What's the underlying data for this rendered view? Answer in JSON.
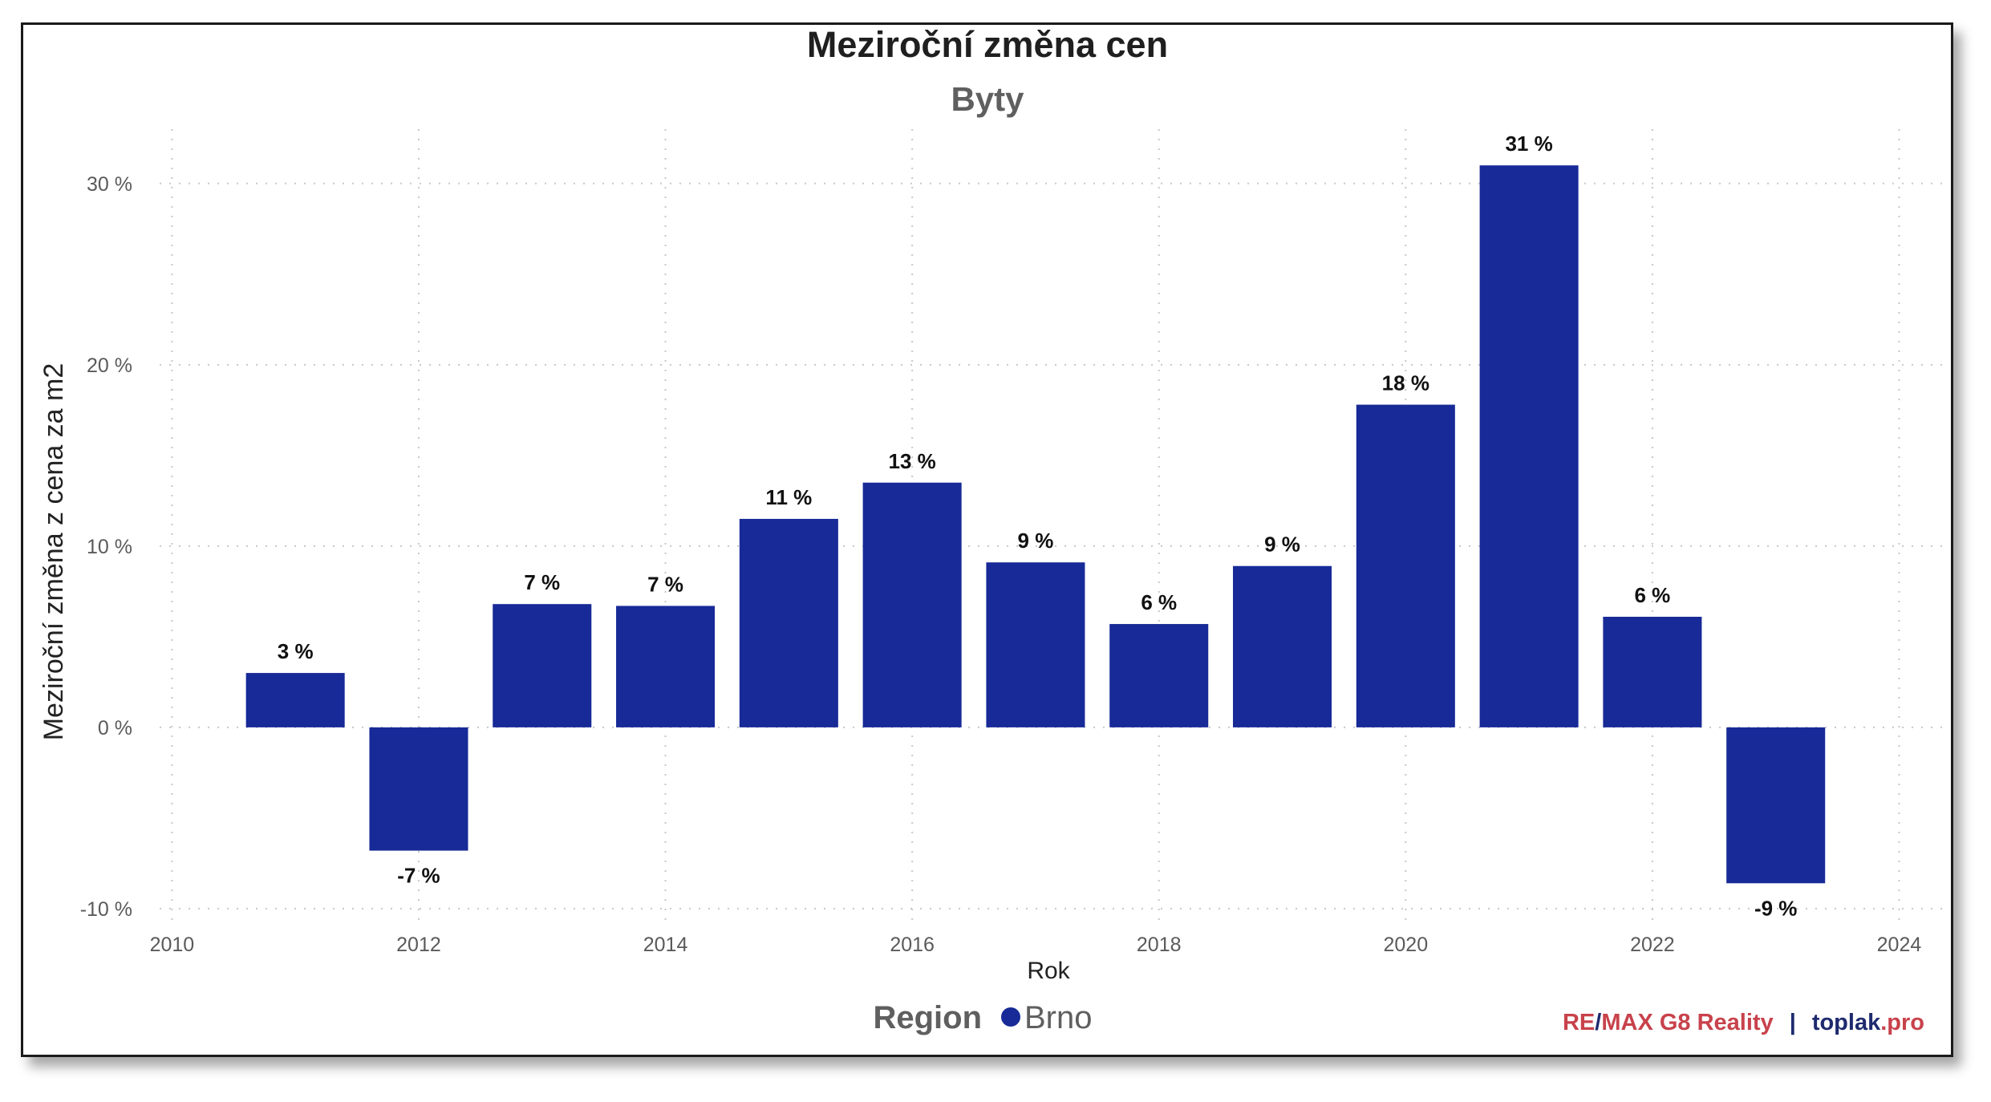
{
  "chart_data": {
    "type": "bar",
    "title": "Meziroční změna cen",
    "subtitle": "Byty",
    "xlabel": "Rok",
    "ylabel": "Meziroční změna z cena za m2",
    "x": [
      2011,
      2012,
      2013,
      2014,
      2015,
      2016,
      2017,
      2018,
      2019,
      2020,
      2021,
      2022,
      2023
    ],
    "values": [
      3.0,
      -6.8,
      6.8,
      6.7,
      11.5,
      13.5,
      9.1,
      5.7,
      8.9,
      17.8,
      31.0,
      6.1,
      -8.6
    ],
    "value_labels": [
      "3 %",
      "-7 %",
      "7 %",
      "7 %",
      "11 %",
      "13 %",
      "9 %",
      "6 %",
      "9 %",
      "18 %",
      "31 %",
      "6 %",
      "-9 %"
    ],
    "xlim": [
      2009.9,
      2024.4
    ],
    "ylim": [
      -10.8,
      33
    ],
    "x_ticks": [
      2010,
      2012,
      2014,
      2016,
      2018,
      2020,
      2022,
      2024
    ],
    "x_tick_labels": [
      "2010",
      "2012",
      "2014",
      "2016",
      "2018",
      "2020",
      "2022",
      "2024"
    ],
    "y_ticks": [
      -10,
      0,
      10,
      20,
      30
    ],
    "y_tick_labels": [
      "-10 %",
      "0 %",
      "10 %",
      "20 %",
      "30 %"
    ],
    "grid": true,
    "legend": {
      "title": "Region",
      "placement": "bottom",
      "series": [
        {
          "name": "Brno",
          "color": "#172A97"
        }
      ]
    },
    "bar_color": "#172A97"
  },
  "credit": {
    "remax_re": "RE",
    "remax_slash": "/",
    "remax_rest": "MAX G8 Reality",
    "separator": "|",
    "toplak_name": "toplak",
    "toplak_domain": ".pro"
  },
  "colors": {
    "title": "#1f1f1f",
    "subtitle": "#5f5f5f",
    "axis_text": "#5a5a5a",
    "remax_red": "#C8424B",
    "remax_dark": "#1E2A6E",
    "toplak_dark": "#1E2A6E",
    "toplak_red": "#C8424B"
  }
}
